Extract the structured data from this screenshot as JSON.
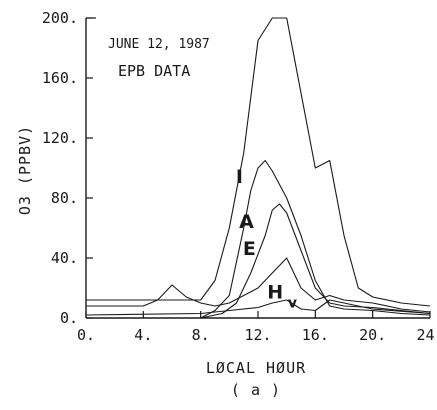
{
  "chart_data": {
    "type": "line",
    "xlabel": "LØCAL HØUR",
    "ylabel": "O3 (PPBV)",
    "caption": "( a )",
    "annotations": [
      "JUNE 12, 1987",
      "EPB DATA"
    ],
    "xlim": [
      0,
      24
    ],
    "ylim": [
      0,
      200
    ],
    "x_ticks": [
      0,
      4,
      8,
      12,
      16,
      20,
      24
    ],
    "x_tick_labels": [
      "0.",
      "4.",
      "8.",
      "12.",
      "16.",
      "20.",
      "24."
    ],
    "y_ticks": [
      0,
      40,
      80,
      120,
      160,
      200
    ],
    "y_tick_labels": [
      "0.",
      "40.",
      "80.",
      "120.",
      "160.",
      "200."
    ],
    "grid": false,
    "series": [
      {
        "name": "I",
        "x": [
          0,
          6,
          8,
          9,
          10,
          11,
          12,
          13,
          14,
          15,
          16,
          17,
          18,
          19,
          20,
          22,
          24
        ],
        "y": [
          12,
          12,
          12,
          25,
          60,
          110,
          185,
          200,
          200,
          150,
          100,
          105,
          55,
          20,
          14,
          10,
          8
        ]
      },
      {
        "name": "A",
        "x": [
          8,
          9,
          10,
          11,
          11.5,
          12,
          12.5,
          13,
          14,
          15,
          16,
          17,
          18,
          20,
          22,
          24
        ],
        "y": [
          0,
          5,
          15,
          60,
          85,
          100,
          105,
          98,
          80,
          55,
          25,
          8,
          6,
          5,
          3,
          2
        ]
      },
      {
        "name": "E",
        "x": [
          8,
          9.5,
          10.5,
          11.5,
          12.5,
          13,
          13.5,
          14,
          15,
          16,
          17,
          18,
          20,
          22,
          24
        ],
        "y": [
          0,
          3,
          10,
          30,
          55,
          72,
          76,
          70,
          45,
          20,
          10,
          8,
          7,
          5,
          3
        ]
      },
      {
        "name": "H",
        "x": [
          0,
          4,
          5,
          6,
          7,
          8,
          9,
          10,
          11,
          12,
          13,
          14,
          15,
          16,
          17,
          18,
          20,
          22,
          24
        ],
        "y": [
          8,
          8,
          12,
          22,
          14,
          10,
          8,
          10,
          15,
          20,
          30,
          40,
          20,
          12,
          15,
          12,
          10,
          6,
          4
        ]
      },
      {
        "name": "V",
        "x": [
          0,
          8,
          10,
          12,
          13,
          14,
          15,
          16,
          17,
          18,
          20,
          24
        ],
        "y": [
          2,
          3,
          5,
          7,
          10,
          12,
          6,
          5,
          12,
          10,
          6,
          3
        ]
      }
    ]
  }
}
